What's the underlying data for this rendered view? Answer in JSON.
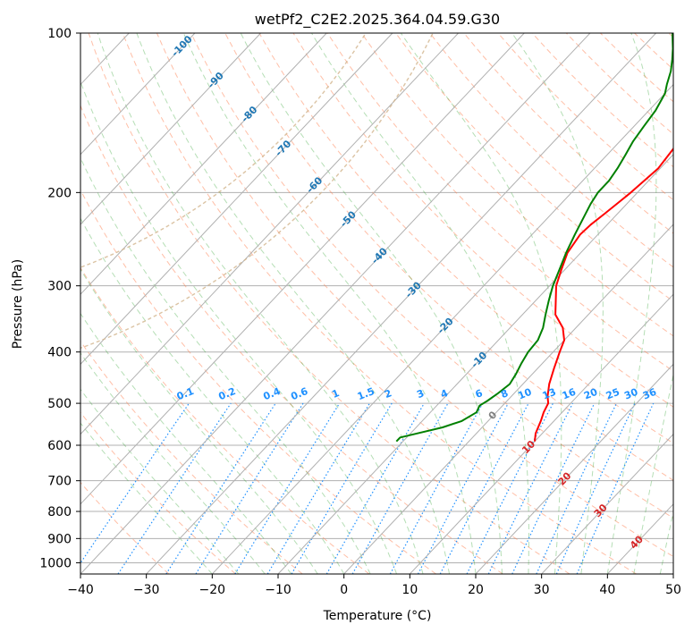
{
  "chart_data": {
    "type": "skew-t",
    "title": "wetPf2_C2E2.2025.364.04.59.G30",
    "xlabel": "Temperature (°C)",
    "ylabel": "Pressure (hPa)",
    "xlim": [
      -40,
      50
    ],
    "ylim": [
      1050,
      100
    ],
    "x_ticks": [
      "−40",
      "−30",
      "−20",
      "−10",
      "0",
      "10",
      "20",
      "30",
      "40",
      "50"
    ],
    "x_tick_values": [
      -40,
      -30,
      -20,
      -10,
      0,
      10,
      20,
      30,
      40,
      50
    ],
    "y_ticks": [
      "100",
      "200",
      "300",
      "400",
      "500",
      "600",
      "700",
      "800",
      "900",
      "1000"
    ],
    "y_tick_values": [
      100,
      200,
      300,
      400,
      500,
      600,
      700,
      800,
      900,
      1000
    ],
    "isotherm_labels": [
      "-100",
      "-90",
      "-80",
      "-70",
      "-60",
      "-50",
      "-40",
      "-30",
      "-20",
      "-10",
      "0",
      "10",
      "20",
      "30",
      "40"
    ],
    "isotherm_label_values": [
      -100,
      -90,
      -80,
      -70,
      -60,
      -50,
      -40,
      -30,
      -20,
      -10,
      0,
      10,
      20,
      30,
      40
    ],
    "mixing_ratio_labels": [
      "0.1",
      "0.2",
      "0.4",
      "0.6",
      "1",
      "1.5",
      "2",
      "3",
      "4",
      "6",
      "8",
      "10",
      "13",
      "16",
      "20",
      "25",
      "30",
      "36"
    ],
    "mixing_ratio_values": [
      0.1,
      0.2,
      0.4,
      0.6,
      1,
      1.5,
      2,
      3,
      4,
      6,
      8,
      10,
      13,
      16,
      20,
      25,
      30,
      36
    ],
    "series": [
      {
        "name": "Temperature",
        "color": "#ff0000",
        "points": [
          [
            590,
            10.0
          ],
          [
            570,
            9.0
          ],
          [
            540,
            8.0
          ],
          [
            520,
            7.2
          ],
          [
            500,
            6.6
          ],
          [
            485,
            5.5
          ],
          [
            460,
            4.0
          ],
          [
            430,
            2.5
          ],
          [
            400,
            1.0
          ],
          [
            380,
            0.0
          ],
          [
            360,
            -2.0
          ],
          [
            340,
            -5.0
          ],
          [
            300,
            -9.0
          ],
          [
            280,
            -10.5
          ],
          [
            260,
            -12.0
          ],
          [
            240,
            -12.7
          ],
          [
            230,
            -12.5
          ],
          [
            220,
            -12.0
          ],
          [
            210,
            -11.5
          ],
          [
            200,
            -11.0
          ],
          [
            180,
            -10.3
          ],
          [
            160,
            -11.0
          ],
          [
            140,
            -12.5
          ],
          [
            125,
            -15.0
          ],
          [
            115,
            -17.5
          ],
          [
            105,
            -20.3
          ],
          [
            100,
            -21.8
          ]
        ]
      },
      {
        "name": "Dewpoint",
        "color": "#008000",
        "points": [
          [
            590,
            -11.0
          ],
          [
            580,
            -11.0
          ],
          [
            570,
            -9.0
          ],
          [
            555,
            -6.0
          ],
          [
            540,
            -4.0
          ],
          [
            520,
            -3.0
          ],
          [
            505,
            -3.5
          ],
          [
            495,
            -3.0
          ],
          [
            480,
            -2.5
          ],
          [
            460,
            -2.0
          ],
          [
            440,
            -2.5
          ],
          [
            420,
            -3.2
          ],
          [
            400,
            -3.8
          ],
          [
            380,
            -4.0
          ],
          [
            360,
            -5.0
          ],
          [
            340,
            -6.5
          ],
          [
            320,
            -8.0
          ],
          [
            300,
            -9.5
          ],
          [
            280,
            -10.8
          ],
          [
            260,
            -12.2
          ],
          [
            240,
            -13.5
          ],
          [
            220,
            -14.8
          ],
          [
            210,
            -15.5
          ],
          [
            200,
            -16.0
          ],
          [
            190,
            -16.0
          ],
          [
            180,
            -16.5
          ],
          [
            170,
            -17.2
          ],
          [
            160,
            -18.0
          ],
          [
            150,
            -18.5
          ],
          [
            140,
            -19.0
          ],
          [
            130,
            -20.0
          ],
          [
            125,
            -21.0
          ],
          [
            118,
            -22.3
          ],
          [
            112,
            -23.8
          ],
          [
            107,
            -25.2
          ],
          [
            103,
            -26.5
          ],
          [
            100,
            -27.5
          ]
        ]
      }
    ],
    "colors": {
      "temperature": "#ff0000",
      "dewpoint": "#008000",
      "isotherm": "#b0b0b0",
      "dry_adiabat": "#ff7f50",
      "moist_adiabat": "#2ca02c",
      "mixing_ratio": "#1e90ff",
      "isotherm_label": "#1f77b4",
      "isotherm_label_warm": "#d62728",
      "zero_label": "#808080",
      "mixing_label": "#1e90ff",
      "isobar": "#b0b0b0",
      "arc": "#d2b48c"
    },
    "grid": true
  }
}
